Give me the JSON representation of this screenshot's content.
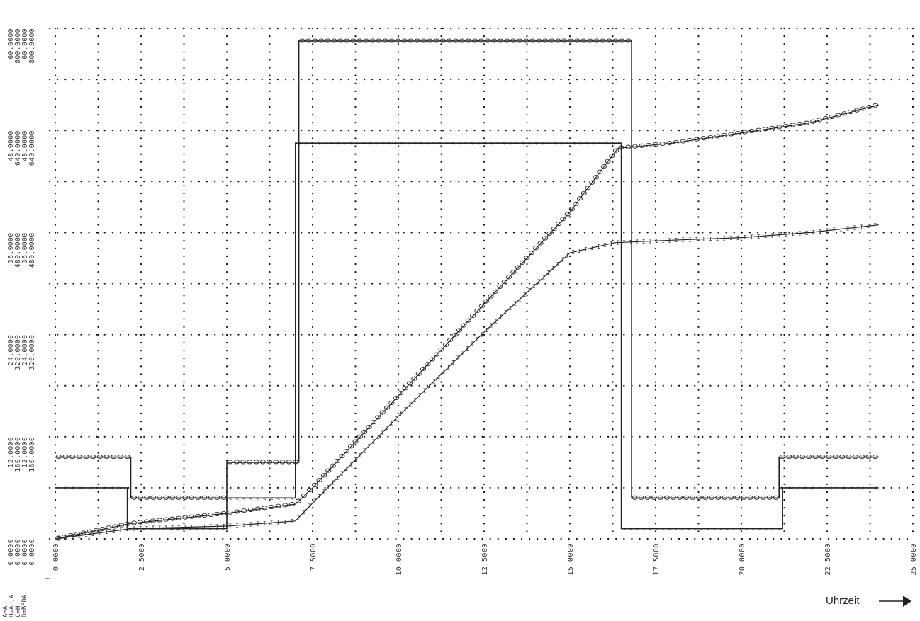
{
  "chart_data": {
    "type": "line",
    "x_axis_label": "T",
    "x_ticks": [
      "0.0000",
      "2.5000",
      "5.0000",
      "7.5000",
      "10.0000",
      "12.5000",
      "15.0000",
      "17.5000",
      "20.0000",
      "22.5000",
      "25.0000"
    ],
    "xlim": [
      0,
      25
    ],
    "ylim": [
      0,
      1
    ],
    "y_tick_columns": [
      [
        "0.0000",
        "12.0000",
        "24.0000",
        "36.0000",
        "48.0000",
        "60.0000"
      ],
      [
        "0.0000",
        "160.0000",
        "320.0000",
        "480.0000",
        "640.0000",
        "800.0000"
      ],
      [
        "0.0000",
        "12.0000",
        "24.0000",
        "36.0000",
        "48.0000",
        "60.0000"
      ],
      [
        "0.0000",
        "160.0000",
        "320.0000",
        "480.0000",
        "640.0000",
        "800.0000"
      ]
    ],
    "legend": [
      "A=A",
      "H=AH,A",
      "C=H",
      "D=BEDA"
    ],
    "corner_label": "Uhrzeit",
    "grid": true,
    "series": [
      {
        "marker": "o",
        "style": "step",
        "points": [
          [
            0,
            0.16
          ],
          [
            2.2,
            0.16
          ],
          [
            2.2,
            0.08
          ],
          [
            5.0,
            0.08
          ],
          [
            5.0,
            0.15
          ],
          [
            7.1,
            0.15
          ],
          [
            7.1,
            0.975
          ],
          [
            16.8,
            0.975
          ],
          [
            16.8,
            0.08
          ],
          [
            21.1,
            0.08
          ],
          [
            21.1,
            0.16
          ],
          [
            24.0,
            0.16
          ]
        ]
      },
      {
        "marker": "<",
        "style": "step",
        "points": [
          [
            0,
            0.1
          ],
          [
            2.1,
            0.1
          ],
          [
            2.1,
            0.02
          ],
          [
            5.0,
            0.02
          ],
          [
            5.0,
            0.08
          ],
          [
            7.0,
            0.08
          ],
          [
            7.0,
            0.775
          ],
          [
            16.5,
            0.775
          ],
          [
            16.5,
            0.02
          ],
          [
            21.2,
            0.02
          ],
          [
            21.2,
            0.1
          ],
          [
            24.0,
            0.1
          ]
        ]
      },
      {
        "marker": "o",
        "style": "line",
        "points": [
          [
            0,
            0
          ],
          [
            2.2,
            0.03
          ],
          [
            5.0,
            0.05
          ],
          [
            7.0,
            0.068
          ],
          [
            7.5,
            0.1
          ],
          [
            10.0,
            0.28
          ],
          [
            12.5,
            0.46
          ],
          [
            15.0,
            0.64
          ],
          [
            16.4,
            0.765
          ],
          [
            18.0,
            0.775
          ],
          [
            20.0,
            0.795
          ],
          [
            22.0,
            0.815
          ],
          [
            24.0,
            0.85
          ]
        ]
      },
      {
        "marker": "I",
        "style": "line",
        "points": [
          [
            0,
            0
          ],
          [
            2.2,
            0.02
          ],
          [
            5.0,
            0.025
          ],
          [
            7.0,
            0.035
          ],
          [
            7.5,
            0.07
          ],
          [
            10.0,
            0.24
          ],
          [
            12.5,
            0.405
          ],
          [
            15.0,
            0.56
          ],
          [
            16.3,
            0.58
          ],
          [
            18.0,
            0.585
          ],
          [
            20.0,
            0.59
          ],
          [
            22.0,
            0.6
          ],
          [
            24.0,
            0.615
          ]
        ]
      }
    ]
  }
}
